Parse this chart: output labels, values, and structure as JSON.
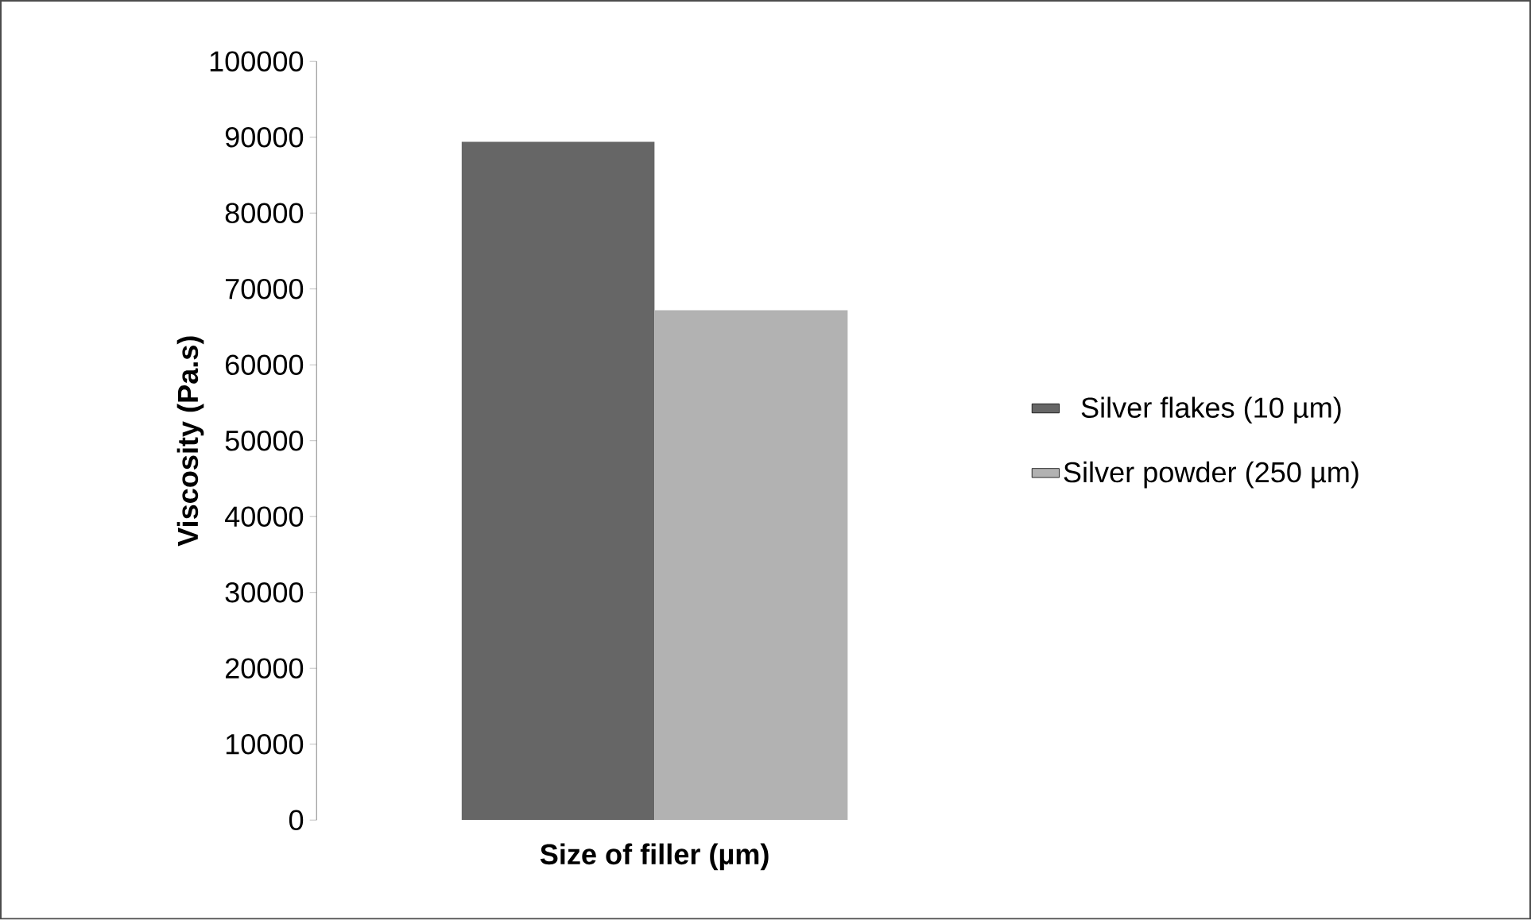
{
  "chart_data": {
    "type": "bar",
    "xlabel": "Size of filler (µm)",
    "ylabel": "Viscosity (Pa.s)",
    "categories": [
      null
    ],
    "series": [
      {
        "name": "Silver flakes (10 µm)",
        "color": "#666666",
        "values": [
          89400
        ]
      },
      {
        "name": "Silver powder (250 µm)",
        "color": "#b2b2b2",
        "values": [
          67200
        ]
      }
    ],
    "ylim": [
      0,
      100000
    ],
    "yticks": [
      0,
      10000,
      20000,
      30000,
      40000,
      50000,
      60000,
      70000,
      80000,
      90000,
      100000
    ],
    "legend": "right",
    "grid": false
  }
}
